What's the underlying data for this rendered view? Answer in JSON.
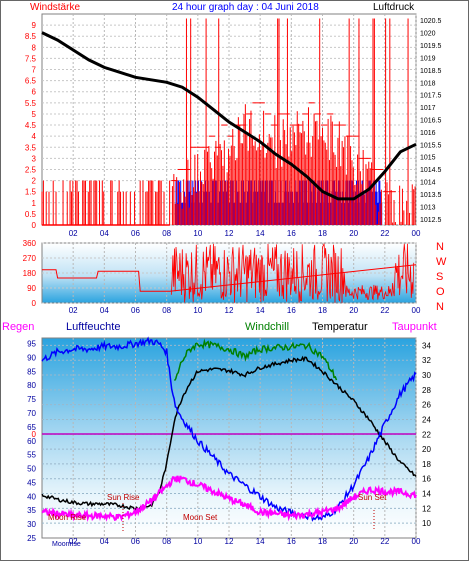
{
  "title": "24 hour graph day : 04 Juni 2018",
  "colors": {
    "red": "#ff0000",
    "blue": "#0000ff",
    "black": "#000000",
    "green": "#008000",
    "magenta": "#ff00ff",
    "navy": "#0000a0",
    "sky": "#30a8e0"
  },
  "chart_data": [
    {
      "type": "bar",
      "name": "wind-pressure",
      "left_label": "Windstärke",
      "right_label": "Luftdruck",
      "left_ticks": [
        "0",
        "0.5",
        "1",
        "1.5",
        "2",
        "2.5",
        "3",
        "3.5",
        "4",
        "4.5",
        "5",
        "5.5",
        "6",
        "6.5",
        "7",
        "7.5",
        "8",
        "8.5",
        "9"
      ],
      "right_ticks": [
        "1012.5",
        "1013",
        "1013.5",
        "1014",
        "1014.5",
        "1015",
        "1015.5",
        "1016",
        "1016.5",
        "1017",
        "1017.5",
        "1018",
        "1018.5",
        "1019",
        "1019.5",
        "1020",
        "1020.5"
      ],
      "x_ticks": [
        "02",
        "04",
        "06",
        "08",
        "10",
        "12",
        "14",
        "16",
        "18",
        "20",
        "22",
        "00"
      ],
      "ylim_left": [
        0,
        9.5
      ],
      "ylim_right": [
        1012.25,
        1020.75
      ],
      "pressure": {
        "x": [
          0,
          1,
          2,
          3,
          4,
          5,
          6,
          7,
          8,
          9,
          10,
          11,
          12,
          13,
          14,
          15,
          16,
          17,
          18,
          19,
          20,
          21,
          22,
          23,
          24
        ],
        "y": [
          1020,
          1019.7,
          1019.3,
          1018.9,
          1018.6,
          1018.4,
          1018.2,
          1018.1,
          1018,
          1017.8,
          1017.4,
          1016.9,
          1016.4,
          1016,
          1015.6,
          1015.1,
          1014.7,
          1014.2,
          1013.6,
          1013.3,
          1013.3,
          1013.7,
          1014.4,
          1015.2,
          1015.5
        ]
      },
      "gust_level": {
        "x": [
          0,
          8,
          9,
          10,
          11,
          12,
          13,
          14,
          15,
          16,
          17,
          18,
          19,
          20,
          21,
          22,
          23,
          24
        ],
        "y": [
          2,
          2,
          3,
          3.5,
          4,
          4.5,
          5.5,
          5.5,
          5,
          5,
          5.5,
          5,
          5,
          4,
          3,
          2,
          2,
          2
        ]
      }
    },
    {
      "type": "scatter",
      "name": "wind-direction",
      "left_ticks": [
        "0",
        "90",
        "180",
        "270",
        "360"
      ],
      "right_labels": [
        "N",
        "W",
        "S",
        "O",
        "N"
      ],
      "x_ticks": [
        "02",
        "04",
        "06",
        "08",
        "10",
        "12",
        "14",
        "16",
        "18",
        "20",
        "22",
        "00"
      ],
      "ylim": [
        0,
        360
      ],
      "x": [
        0,
        0.9,
        1,
        3.5,
        3.6,
        6.2,
        6.3,
        8.2,
        24
      ],
      "y": [
        200,
        200,
        150,
        150,
        190,
        190,
        70,
        70,
        230
      ]
    },
    {
      "type": "line",
      "name": "temperature-humidity",
      "labels": {
        "regen": "Regen",
        "luftfeuchte": "Luftfeuchte",
        "windchill": "Windchill",
        "temperatur": "Temperatur",
        "taupunkt": "Taupunkt"
      },
      "left_ticks": [
        "25",
        "30",
        "35",
        "40",
        "45",
        "50",
        "55",
        "60",
        "65",
        "70",
        "75",
        "80",
        "85",
        "90",
        "95"
      ],
      "rain_axis_label": "0",
      "right_ticks": [
        "10",
        "12",
        "14",
        "16",
        "18",
        "20",
        "22",
        "24",
        "26",
        "28",
        "30",
        "32",
        "34"
      ],
      "x_ticks": [
        "02",
        "04",
        "06",
        "08",
        "10",
        "12",
        "14",
        "16",
        "18",
        "20",
        "22",
        "00"
      ],
      "ylim_left": [
        25,
        97
      ],
      "ylim_right": [
        8,
        35
      ],
      "annotations": {
        "sun_rise": "Sun Rise",
        "sun_set": "Sun Set",
        "moon_rise": "Moon Rise",
        "moon_set": "Moon Set",
        "moon_phase": "Moonrise"
      },
      "humidity": {
        "x": [
          0,
          1,
          2,
          3,
          4,
          5,
          6,
          7,
          7.5,
          8,
          8.3,
          8.6,
          9,
          10,
          11,
          12,
          13,
          14,
          15,
          16,
          17,
          18,
          19,
          20,
          21,
          22,
          23,
          24
        ],
        "y": [
          89,
          92,
          93,
          93,
          94,
          94,
          95,
          96,
          95,
          92,
          80,
          72,
          68,
          60,
          54,
          48,
          44,
          40,
          36,
          34,
          33,
          32,
          36,
          44,
          54,
          66,
          77,
          84
        ]
      },
      "temperature": {
        "x": [
          0,
          1,
          2,
          3,
          4,
          5,
          6,
          7,
          7.5,
          8,
          8.5,
          9,
          9.5,
          10,
          11,
          12,
          13,
          14,
          15,
          16,
          17,
          18,
          19,
          20,
          21,
          22,
          23,
          24
        ],
        "y": [
          13.8,
          13.2,
          12.8,
          12.6,
          12.6,
          12.4,
          12.0,
          12.4,
          14.0,
          18,
          24,
          27,
          29,
          30.5,
          30.8,
          30.6,
          30.0,
          31.0,
          31.5,
          32.0,
          32.2,
          30.5,
          28.5,
          26.5,
          24.0,
          21.0,
          18.2,
          16.3
        ]
      },
      "windchill": {
        "x": [
          8.5,
          9,
          9.5,
          10,
          11,
          12,
          13,
          14,
          15,
          16,
          17,
          18,
          18.9
        ],
        "y": [
          29,
          32,
          33.5,
          34.2,
          34.0,
          33.5,
          32.5,
          33.5,
          33.7,
          33.8,
          34.0,
          32.5,
          29.5
        ]
      },
      "dewpoint": {
        "x": [
          0,
          1,
          2,
          3,
          4,
          5,
          6,
          7,
          8,
          8.5,
          9,
          10,
          11,
          12,
          13,
          14,
          15,
          16,
          17,
          18,
          19,
          20,
          21,
          22,
          23,
          24
        ],
        "y": [
          11.5,
          11.3,
          11.0,
          11.0,
          11.0,
          10.8,
          11.5,
          13.0,
          15.0,
          16.0,
          16.0,
          15.2,
          14.3,
          13.3,
          12.5,
          11.5,
          11.3,
          11.0,
          11.2,
          11.5,
          12.0,
          13.5,
          14.5,
          14.3,
          14.2,
          13.8
        ]
      }
    }
  ]
}
